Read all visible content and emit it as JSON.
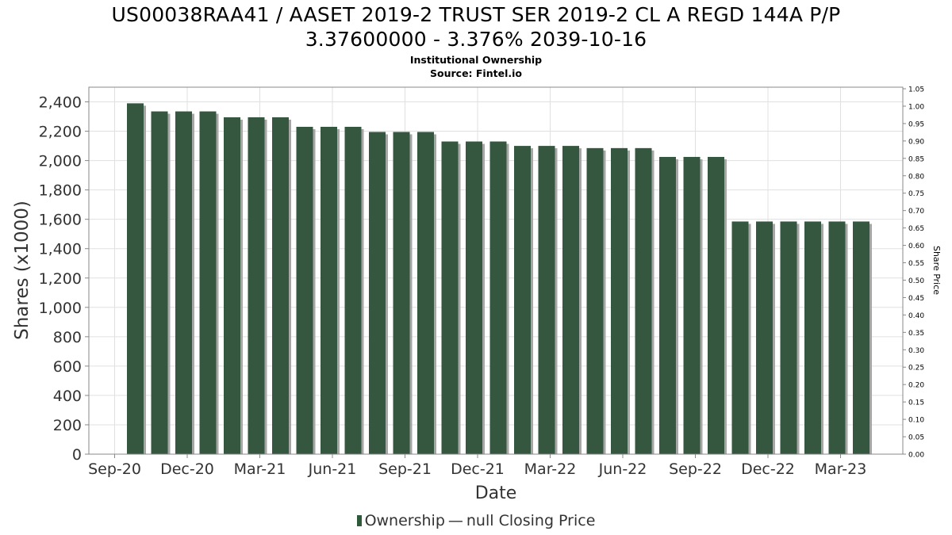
{
  "title_line1": "US00038RAA41 / AASET 2019-2 TRUST SER 2019-2 CL A REGD 144A P/P",
  "title_line2": "3.37600000 - 3.376% 2039-10-16",
  "subtitle1": "Institutional Ownership",
  "subtitle2": "Source: Fintel.io",
  "legend": {
    "ownership": "Ownership",
    "separator": "—",
    "price": "null Closing Price"
  },
  "colors": {
    "bar": "#36573f",
    "bar_shadow": "#a6a6a6",
    "grid": "#e0e0e0",
    "axis": "#888888"
  },
  "chart_data": {
    "type": "bar",
    "xlabel": "Date",
    "ylabel": "Shares (x1000)",
    "y2label": "Share Price",
    "ylim": [
      0,
      2500
    ],
    "y_ticks": [
      0,
      200,
      400,
      600,
      800,
      1000,
      1200,
      1400,
      1600,
      1800,
      2000,
      2200,
      2400
    ],
    "y_tick_labels": [
      "0",
      "200",
      "400",
      "600",
      "800",
      "1,000",
      "1,200",
      "1,400",
      "1,600",
      "1,800",
      "2,000",
      "2,200",
      "2,400"
    ],
    "y2lim": [
      0,
      1.05
    ],
    "y2_ticks": [
      "0.00",
      "0.05",
      "0.10",
      "0.15",
      "0.20",
      "0.25",
      "0.30",
      "0.35",
      "0.40",
      "0.45",
      "0.50",
      "0.55",
      "0.60",
      "0.65",
      "0.70",
      "0.75",
      "0.80",
      "0.85",
      "0.90",
      "0.95",
      "1.00",
      "1.05"
    ],
    "x_tick_labels": [
      "Sep-20",
      "Dec-20",
      "Mar-21",
      "Jun-21",
      "Sep-21",
      "Dec-21",
      "Mar-22",
      "Jun-22",
      "Sep-22",
      "Dec-22",
      "Mar-23"
    ],
    "grid": true,
    "legend_position": "bottom",
    "series": [
      {
        "name": "Ownership",
        "values": [
          2390,
          2335,
          2335,
          2335,
          2295,
          2295,
          2295,
          2230,
          2230,
          2230,
          2195,
          2195,
          2195,
          2130,
          2130,
          2130,
          2100,
          2100,
          2100,
          2085,
          2085,
          2085,
          2025,
          2025,
          2025,
          1585,
          1585,
          1585,
          1585,
          1585,
          1585
        ]
      }
    ]
  }
}
